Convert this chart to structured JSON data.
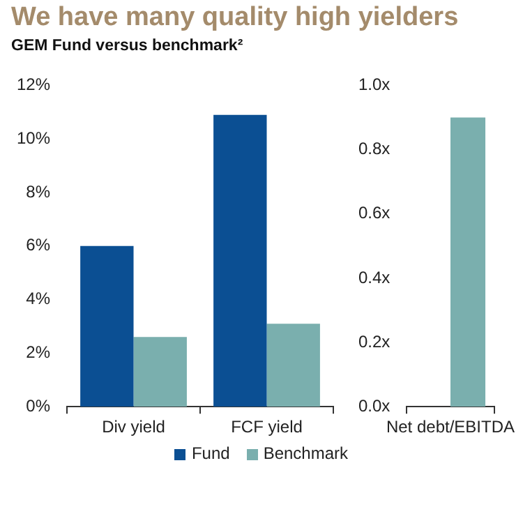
{
  "chart_data": [
    {
      "type": "bar",
      "title": "We have many quality high yielders",
      "subtitle": "GEM Fund versus benchmark²",
      "categories": [
        "Div yield",
        "FCF yield"
      ],
      "series": [
        {
          "name": "Fund",
          "color": "#0b4f93",
          "values": [
            6.0,
            10.9
          ]
        },
        {
          "name": "Benchmark",
          "color": "#7aafae",
          "values": [
            2.6,
            3.1
          ]
        }
      ],
      "ylim": [
        0,
        12
      ],
      "yticks": [
        {
          "value": 0,
          "label": "0%"
        },
        {
          "value": 2,
          "label": "2%"
        },
        {
          "value": 4,
          "label": "4%"
        },
        {
          "value": 6,
          "label": "6%"
        },
        {
          "value": 8,
          "label": "8%"
        },
        {
          "value": 10,
          "label": "10%"
        },
        {
          "value": 12,
          "label": "12%"
        }
      ],
      "grid": false,
      "legend": "bottom"
    },
    {
      "type": "bar",
      "categories": [
        "Net debt/EBITDA"
      ],
      "series": [
        {
          "color": "#0b4f93",
          "values": [
            null
          ]
        },
        {
          "color": "#7aafae",
          "values": [
            0.9
          ]
        }
      ],
      "ylim": [
        0,
        1
      ],
      "yticks": [
        {
          "value": 0,
          "label": "0.0x"
        },
        {
          "value": 0.2,
          "label": "0.2x"
        },
        {
          "value": 0.4,
          "label": "0.4x"
        },
        {
          "value": 0.6,
          "label": "0.6x"
        },
        {
          "value": 0.8,
          "label": "0.8x"
        },
        {
          "value": 1,
          "label": "1.0x"
        }
      ],
      "grid": false
    }
  ]
}
